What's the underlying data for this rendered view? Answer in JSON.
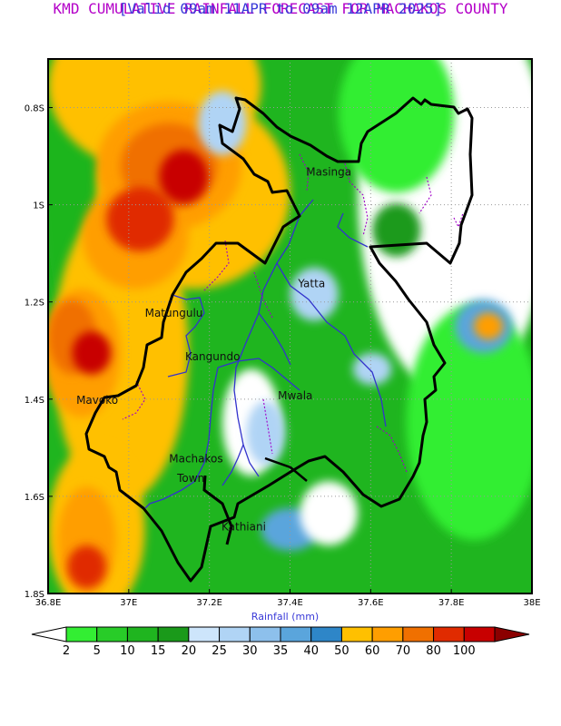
{
  "title": "KMD CUMULATIVE RAINFALL FORECAST FOR MACHAKOS COUNTY",
  "subtitle": "[Valid 09am 11APR to 09am 12APR 2025]",
  "title_color": "#b400c8",
  "subtitle_color": "#3a3ad8",
  "map": {
    "lon_range": [
      36.8,
      38.0
    ],
    "lat_range": [
      -1.8,
      -0.7
    ],
    "lon_ticks": [
      "36.8E",
      "37E",
      "37.2E",
      "37.4E",
      "37.6E",
      "37.8E",
      "38E"
    ],
    "lat_ticks": [
      "0.8S",
      "1S",
      "1.2S",
      "1.4S",
      "1.6S",
      "1.8S"
    ],
    "xlabel": "Rainfall (mm)",
    "places": [
      {
        "name": "Masinga",
        "lon": 37.44,
        "lat": -0.94
      },
      {
        "name": "Yatta",
        "lon": 37.42,
        "lat": -1.17
      },
      {
        "name": "Matungulu",
        "lon": 37.04,
        "lat": -1.23
      },
      {
        "name": "Kangundo",
        "lon": 37.14,
        "lat": -1.32
      },
      {
        "name": "Mavoko",
        "lon": 36.87,
        "lat": -1.41
      },
      {
        "name": "Mwala",
        "lon": 37.37,
        "lat": -1.4
      },
      {
        "name": "Machakos",
        "lon": 37.1,
        "lat": -1.53
      },
      {
        "name": "Town",
        "lon": 37.12,
        "lat": -1.57
      },
      {
        "name": "Kathiani",
        "lon": 37.23,
        "lat": -1.67
      }
    ]
  },
  "colorbar": {
    "labels": [
      "2",
      "5",
      "10",
      "15",
      "20",
      "25",
      "30",
      "35",
      "40",
      "50",
      "60",
      "70",
      "80",
      "100"
    ],
    "colors": [
      "#33ee33",
      "#28cc28",
      "#1fb51f",
      "#1a9a1a",
      "#cde5fb",
      "#b0d4f5",
      "#8dc0ec",
      "#5aa5dc",
      "#2e86c8",
      "#ffc000",
      "#ff9e00",
      "#f07000",
      "#e02b00",
      "#c80000"
    ],
    "under_color": "#ffffff",
    "over_color": "#8b0000"
  }
}
